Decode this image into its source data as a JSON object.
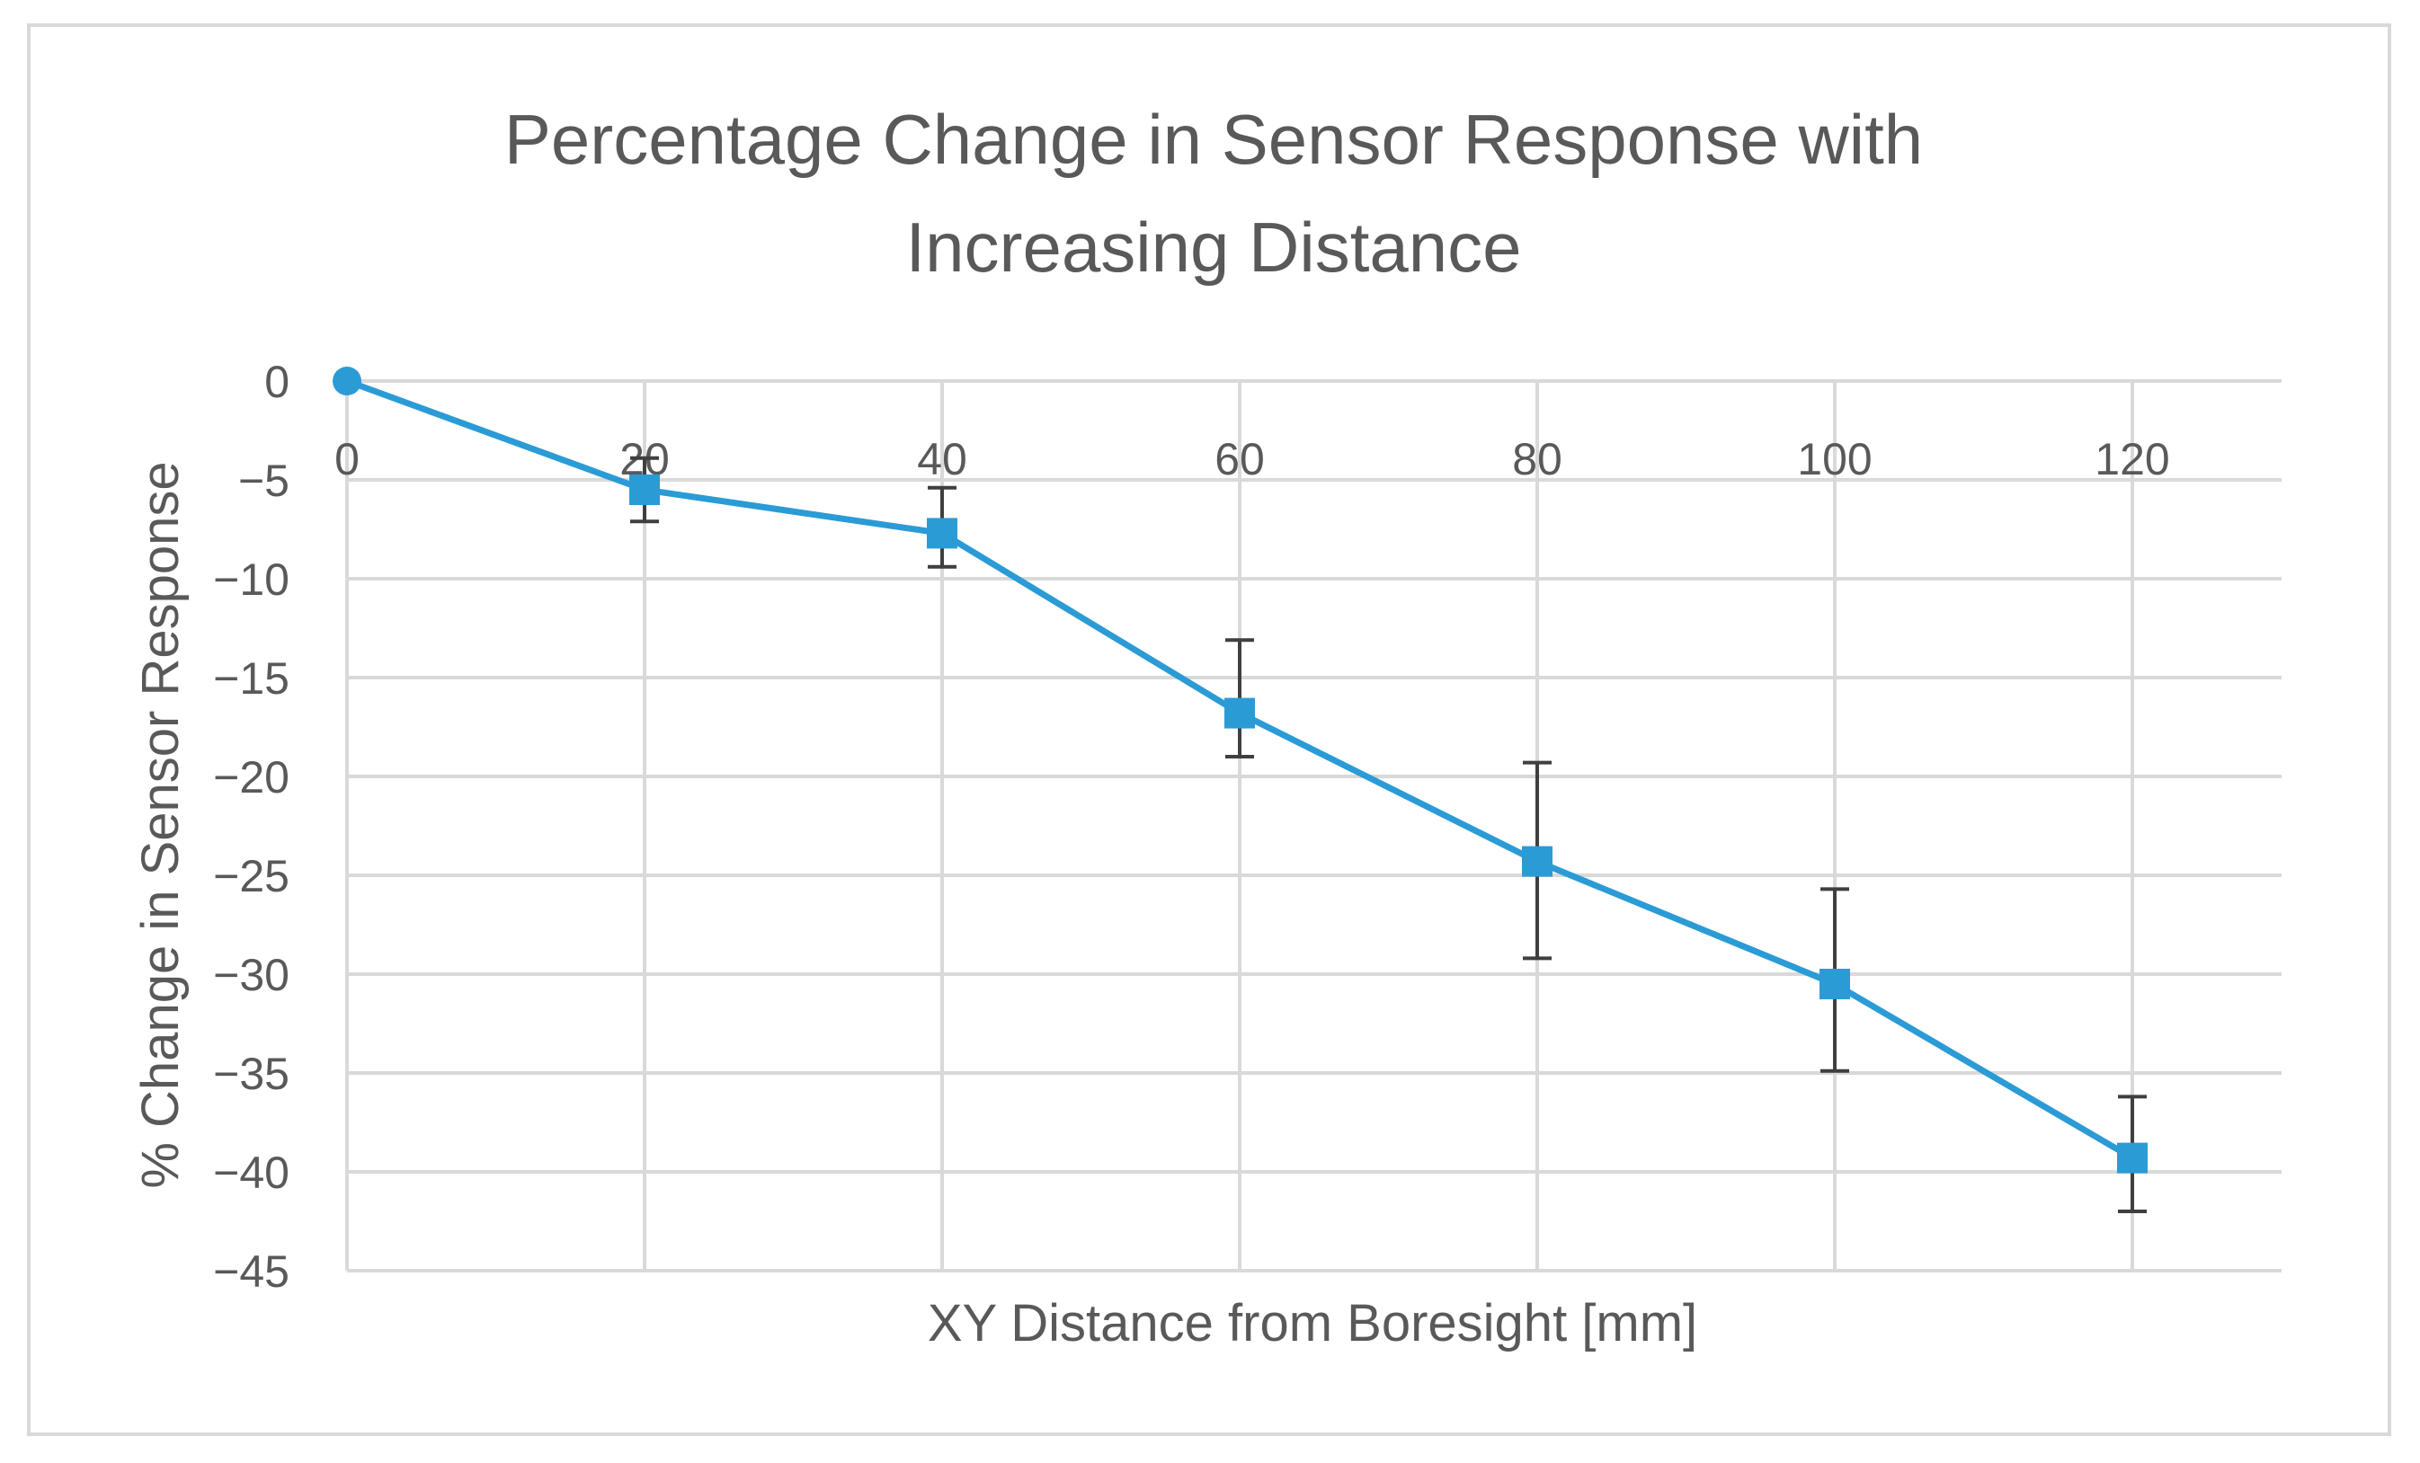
{
  "chart_data": {
    "type": "line",
    "title_lines": [
      "Percentage Change in Sensor Response with",
      "Increasing Distance"
    ],
    "xlabel": "XY Distance from Boresight [mm]",
    "ylabel": "% Change in Sensor Response",
    "x_ticks": [
      "0",
      "20",
      "40",
      "60",
      "80",
      "100",
      "120"
    ],
    "y_ticks": [
      "0",
      "−5",
      "−10",
      "−15",
      "−20",
      "−25",
      "−30",
      "−35",
      "−40",
      "−45"
    ],
    "xlim": [
      0,
      130
    ],
    "ylim": [
      -45,
      0
    ],
    "grid": true,
    "series": [
      {
        "name": "% Change in Sensor Response",
        "color": "#2b9bd6",
        "x": [
          0,
          20,
          40,
          60,
          80,
          100,
          120
        ],
        "y": [
          0,
          -5.5,
          -7.7,
          -16.8,
          -24.3,
          -30.5,
          -39.3
        ],
        "err_low": [
          0,
          1.6,
          1.7,
          2.2,
          4.9,
          4.4,
          2.7
        ],
        "err_high": [
          0,
          1.6,
          2.3,
          3.7,
          5.0,
          4.8,
          3.1
        ]
      }
    ]
  }
}
